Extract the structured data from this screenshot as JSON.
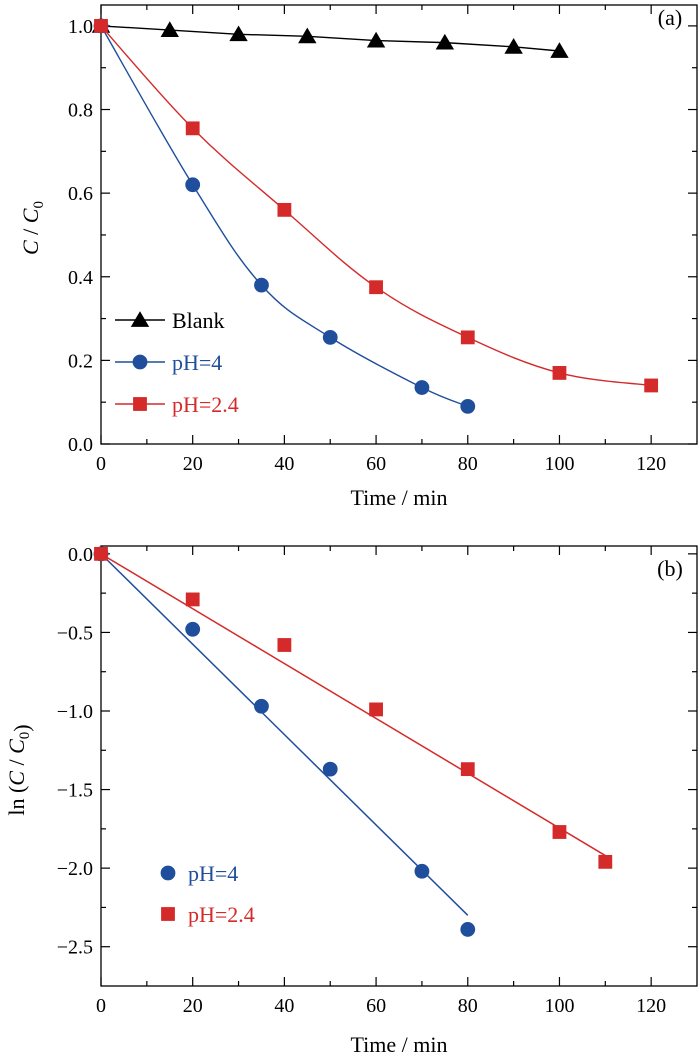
{
  "chart_data": [
    {
      "type": "line",
      "panel_label": "(a)",
      "xlabel": "Time / min",
      "ylabel": "C / C0",
      "xlim": [
        0,
        130
      ],
      "ylim": [
        0,
        1.05
      ],
      "x_ticks": [
        "0",
        "20",
        "40",
        "60",
        "80",
        "100",
        "120"
      ],
      "x_tick_values": [
        0,
        20,
        40,
        60,
        80,
        100,
        120
      ],
      "y_ticks": [
        "0.0",
        "0.2",
        "0.4",
        "0.6",
        "0.8",
        "1.0"
      ],
      "y_tick_values": [
        0,
        0.2,
        0.4,
        0.6,
        0.8,
        1.0
      ],
      "legend_position": "lower-left",
      "series": [
        {
          "name": "Blank",
          "marker": "triangle",
          "color": "#000000",
          "line": "connect",
          "x": [
            0,
            15,
            30,
            45,
            60,
            75,
            90,
            100
          ],
          "y": [
            1.0,
            0.99,
            0.98,
            0.975,
            0.965,
            0.96,
            0.95,
            0.94
          ]
        },
        {
          "name": "pH=4",
          "marker": "circle",
          "color": "#1f4e9c",
          "line": "smooth",
          "x": [
            0,
            20,
            35,
            50,
            70,
            80
          ],
          "y": [
            1.0,
            0.62,
            0.38,
            0.255,
            0.135,
            0.09
          ]
        },
        {
          "name": "pH=2.4",
          "marker": "square",
          "color": "#d42a2a",
          "line": "smooth",
          "x": [
            0,
            20,
            40,
            60,
            80,
            100,
            120
          ],
          "y": [
            1.0,
            0.755,
            0.56,
            0.375,
            0.255,
            0.17,
            0.14
          ]
        }
      ]
    },
    {
      "type": "scatter",
      "panel_label": "(b)",
      "xlabel": "Time / min",
      "ylabel": "ln (C / C0)",
      "xlim": [
        0,
        130
      ],
      "ylim": [
        -2.75,
        0.05
      ],
      "x_ticks": [
        "0",
        "20",
        "40",
        "60",
        "80",
        "100",
        "120"
      ],
      "x_tick_values": [
        0,
        20,
        40,
        60,
        80,
        100,
        120
      ],
      "y_ticks": [
        "0.0",
        "−0.5",
        "−1.0",
        "−1.5",
        "−2.0",
        "−2.5"
      ],
      "y_tick_values": [
        0,
        -0.5,
        -1.0,
        -1.5,
        -2.0,
        -2.5
      ],
      "legend_position": "lower-left",
      "series": [
        {
          "name": "pH=4",
          "marker": "circle",
          "color": "#1f4e9c",
          "x": [
            0,
            20,
            35,
            50,
            70,
            80
          ],
          "y": [
            0,
            -0.48,
            -0.97,
            -1.37,
            -2.02,
            -2.39
          ],
          "fit": {
            "x": [
              0,
              80
            ],
            "y": [
              0,
              -2.3
            ]
          }
        },
        {
          "name": "pH=2.4",
          "marker": "square",
          "color": "#d42a2a",
          "x": [
            0,
            20,
            40,
            60,
            80,
            100,
            110
          ],
          "y": [
            0,
            -0.29,
            -0.58,
            -0.99,
            -1.37,
            -1.77,
            -1.96
          ],
          "fit": {
            "x": [
              0,
              110
            ],
            "y": [
              0,
              -1.92
            ]
          }
        }
      ]
    }
  ]
}
